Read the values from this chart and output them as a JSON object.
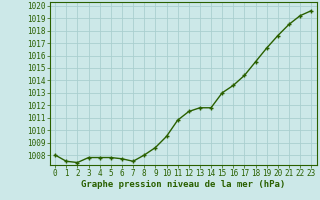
{
  "x": [
    0,
    1,
    2,
    3,
    4,
    5,
    6,
    7,
    8,
    9,
    10,
    11,
    12,
    13,
    14,
    15,
    16,
    17,
    18,
    19,
    20,
    21,
    22,
    23
  ],
  "y": [
    1008.0,
    1007.5,
    1007.4,
    1007.8,
    1007.8,
    1007.8,
    1007.7,
    1007.5,
    1008.0,
    1008.6,
    1009.5,
    1010.8,
    1011.5,
    1011.8,
    1011.8,
    1013.0,
    1013.6,
    1014.4,
    1015.5,
    1016.6,
    1017.6,
    1018.5,
    1019.2,
    1019.6
  ],
  "line_color": "#2a6000",
  "marker": "+",
  "marker_color": "#2a6000",
  "bg_color": "#cce8e8",
  "grid_color": "#aacfcf",
  "axis_label_color": "#2a6000",
  "tick_color": "#2a6000",
  "xlabel": "Graphe pression niveau de la mer (hPa)",
  "ylim": [
    1007.2,
    1020.3
  ],
  "yticks": [
    1008,
    1009,
    1010,
    1011,
    1012,
    1013,
    1014,
    1015,
    1016,
    1017,
    1018,
    1019,
    1020
  ],
  "xticks": [
    0,
    1,
    2,
    3,
    4,
    5,
    6,
    7,
    8,
    9,
    10,
    11,
    12,
    13,
    14,
    15,
    16,
    17,
    18,
    19,
    20,
    21,
    22,
    23
  ],
  "marker_size": 3.5,
  "line_width": 1.0,
  "spine_color": "#2a6000",
  "font_family": "monospace",
  "tick_fontsize": 5.5,
  "xlabel_fontsize": 6.5
}
